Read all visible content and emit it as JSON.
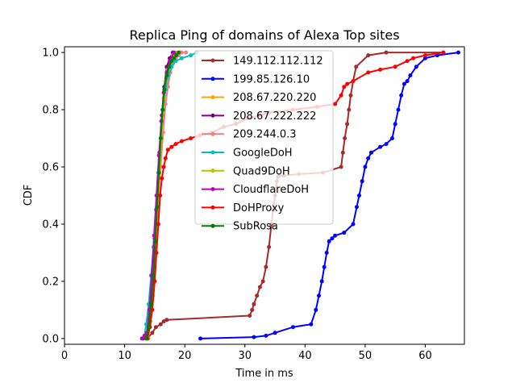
{
  "chart_data": {
    "type": "line",
    "title": "Replica Ping of domains of Alexa Top sites",
    "xlabel": "Time in ms",
    "ylabel": "CDF",
    "xlim": [
      0,
      66.5
    ],
    "ylim": [
      -0.02,
      1.02
    ],
    "xticks": [
      0,
      10,
      20,
      30,
      40,
      50,
      60
    ],
    "yticks": [
      0.0,
      0.2,
      0.4,
      0.6,
      0.8,
      1.0
    ],
    "xtick_labels": [
      "0",
      "10",
      "20",
      "30",
      "40",
      "50",
      "60"
    ],
    "ytick_labels": [
      "0.0",
      "0.2",
      "0.4",
      "0.6",
      "0.8",
      "1.0"
    ],
    "grid": false,
    "legend_position": "center",
    "series": [
      {
        "name": "149.112.112.112",
        "color": "#a52a2a",
        "x": [
          13.8,
          14.6,
          15.2,
          16.0,
          16.5,
          17.0,
          30.8,
          31.2,
          31.5,
          32.0,
          32.5,
          33.0,
          33.5,
          34.0,
          34.4,
          34.7,
          35.0,
          35.3,
          35.5,
          35.7,
          36.5,
          39.0,
          43.0,
          46.0,
          46.3,
          46.6,
          47.0,
          47.3,
          47.6,
          48.0,
          48.5,
          50.5,
          53.5,
          63.0
        ],
        "y": [
          0.0,
          0.02,
          0.04,
          0.05,
          0.06,
          0.065,
          0.08,
          0.1,
          0.12,
          0.15,
          0.18,
          0.2,
          0.25,
          0.32,
          0.4,
          0.45,
          0.5,
          0.55,
          0.565,
          0.57,
          0.57,
          0.575,
          0.58,
          0.6,
          0.65,
          0.7,
          0.75,
          0.8,
          0.85,
          0.9,
          0.95,
          0.99,
          1.0,
          1.0
        ]
      },
      {
        "name": "199.85.126.10",
        "color": "#0000ff",
        "x": [
          22.6,
          31.5,
          33.5,
          35.0,
          38.0,
          41.0,
          41.8,
          42.3,
          42.8,
          43.2,
          43.6,
          44.0,
          44.5,
          45.0,
          46.5,
          48.0,
          48.6,
          49.0,
          49.5,
          50.0,
          50.5,
          51.0,
          52.5,
          53.5,
          54.5,
          55.0,
          55.5,
          56.0,
          56.5,
          57.0,
          57.5,
          58.5,
          60.0,
          62.0,
          65.5
        ],
        "y": [
          0.0,
          0.005,
          0.01,
          0.02,
          0.04,
          0.05,
          0.1,
          0.15,
          0.2,
          0.25,
          0.3,
          0.34,
          0.35,
          0.36,
          0.37,
          0.4,
          0.46,
          0.5,
          0.55,
          0.6,
          0.63,
          0.65,
          0.67,
          0.68,
          0.7,
          0.75,
          0.8,
          0.85,
          0.89,
          0.9,
          0.92,
          0.95,
          0.98,
          0.99,
          1.0
        ]
      },
      {
        "name": "208.67.220.220",
        "color": "#ffa500",
        "x": [
          13.9,
          14.2,
          14.5,
          14.8,
          15.0,
          15.3,
          15.6,
          15.9,
          16.2,
          16.5,
          16.8,
          17.2,
          17.8,
          18.5,
          19.2
        ],
        "y": [
          0.0,
          0.05,
          0.12,
          0.2,
          0.3,
          0.4,
          0.5,
          0.6,
          0.7,
          0.8,
          0.88,
          0.93,
          0.97,
          0.99,
          1.0
        ]
      },
      {
        "name": "208.67.222.222",
        "color": "#800080",
        "x": [
          12.9,
          13.4,
          13.8,
          14.2,
          14.6,
          15.0,
          15.4,
          15.8,
          16.2,
          16.6,
          17.0,
          17.5,
          18.0
        ],
        "y": [
          0.0,
          0.01,
          0.02,
          0.08,
          0.2,
          0.35,
          0.5,
          0.65,
          0.78,
          0.88,
          0.95,
          0.98,
          1.0
        ]
      },
      {
        "name": "209.244.0.3",
        "color": "#f08080",
        "x": [
          13.5,
          14.0,
          14.4,
          14.8,
          15.2,
          15.6,
          16.0,
          16.4,
          16.8,
          17.2,
          17.6,
          18.0,
          18.5,
          19.0,
          19.5,
          20.2
        ],
        "y": [
          0.0,
          0.04,
          0.12,
          0.22,
          0.35,
          0.48,
          0.6,
          0.72,
          0.82,
          0.88,
          0.93,
          0.96,
          0.98,
          0.99,
          1.0,
          1.0
        ]
      },
      {
        "name": "GoogleDoH",
        "color": "#00bfbf",
        "x": [
          13.2,
          13.6,
          14.0,
          14.4,
          14.8,
          15.2,
          15.6,
          16.0,
          16.4,
          16.8,
          17.3,
          17.8,
          18.5,
          19.5,
          21.0,
          22.0
        ],
        "y": [
          0.0,
          0.05,
          0.12,
          0.22,
          0.32,
          0.45,
          0.58,
          0.7,
          0.8,
          0.87,
          0.92,
          0.95,
          0.97,
          0.98,
          0.99,
          1.0
        ]
      },
      {
        "name": "Quad9DoH",
        "color": "#bfbf00",
        "x": [
          13.9,
          14.3,
          14.7,
          15.0,
          15.3,
          15.6,
          15.9,
          16.2,
          16.5,
          16.8,
          17.2,
          17.6,
          18.0,
          18.6
        ],
        "y": [
          0.0,
          0.06,
          0.15,
          0.25,
          0.38,
          0.5,
          0.62,
          0.74,
          0.84,
          0.9,
          0.94,
          0.97,
          0.99,
          1.0
        ]
      },
      {
        "name": "CloudflareDoH",
        "color": "#bf00bf",
        "x": [
          13.0,
          13.3,
          13.7,
          14.1,
          14.5,
          14.9,
          15.3,
          15.7,
          16.1,
          16.5,
          17.0,
          17.5,
          18.2
        ],
        "y": [
          0.0,
          0.01,
          0.02,
          0.1,
          0.22,
          0.36,
          0.5,
          0.64,
          0.76,
          0.86,
          0.93,
          0.97,
          1.0
        ]
      },
      {
        "name": "DoHProxy",
        "color": "#ff0000",
        "x": [
          13.8,
          14.2,
          14.6,
          15.0,
          15.3,
          15.6,
          15.9,
          16.2,
          16.5,
          16.8,
          17.2,
          17.8,
          18.5,
          19.5,
          21.0,
          22.5,
          24.5,
          26.5,
          28.5,
          30.5,
          32.5,
          34.0,
          38.0,
          42.0,
          45.0,
          46.0,
          46.5,
          47.0,
          48.0,
          50.5,
          52.5,
          55.0,
          57.0,
          58.0,
          60.0,
          63.0
        ],
        "y": [
          0.0,
          0.04,
          0.1,
          0.2,
          0.3,
          0.4,
          0.5,
          0.56,
          0.6,
          0.63,
          0.66,
          0.67,
          0.68,
          0.69,
          0.7,
          0.71,
          0.72,
          0.74,
          0.75,
          0.77,
          0.78,
          0.79,
          0.8,
          0.81,
          0.82,
          0.85,
          0.88,
          0.89,
          0.9,
          0.93,
          0.94,
          0.95,
          0.97,
          0.98,
          0.99,
          1.0
        ]
      },
      {
        "name": "SubRosa",
        "color": "#008000",
        "x": [
          13.6,
          14.0,
          14.4,
          14.8,
          15.1,
          15.4,
          15.7,
          16.0,
          16.3,
          16.6,
          17.0,
          17.4,
          17.8,
          18.2,
          18.6,
          19.0
        ],
        "y": [
          0.0,
          0.04,
          0.12,
          0.22,
          0.34,
          0.46,
          0.58,
          0.7,
          0.8,
          0.87,
          0.92,
          0.95,
          0.97,
          0.98,
          0.99,
          1.0
        ]
      }
    ]
  }
}
